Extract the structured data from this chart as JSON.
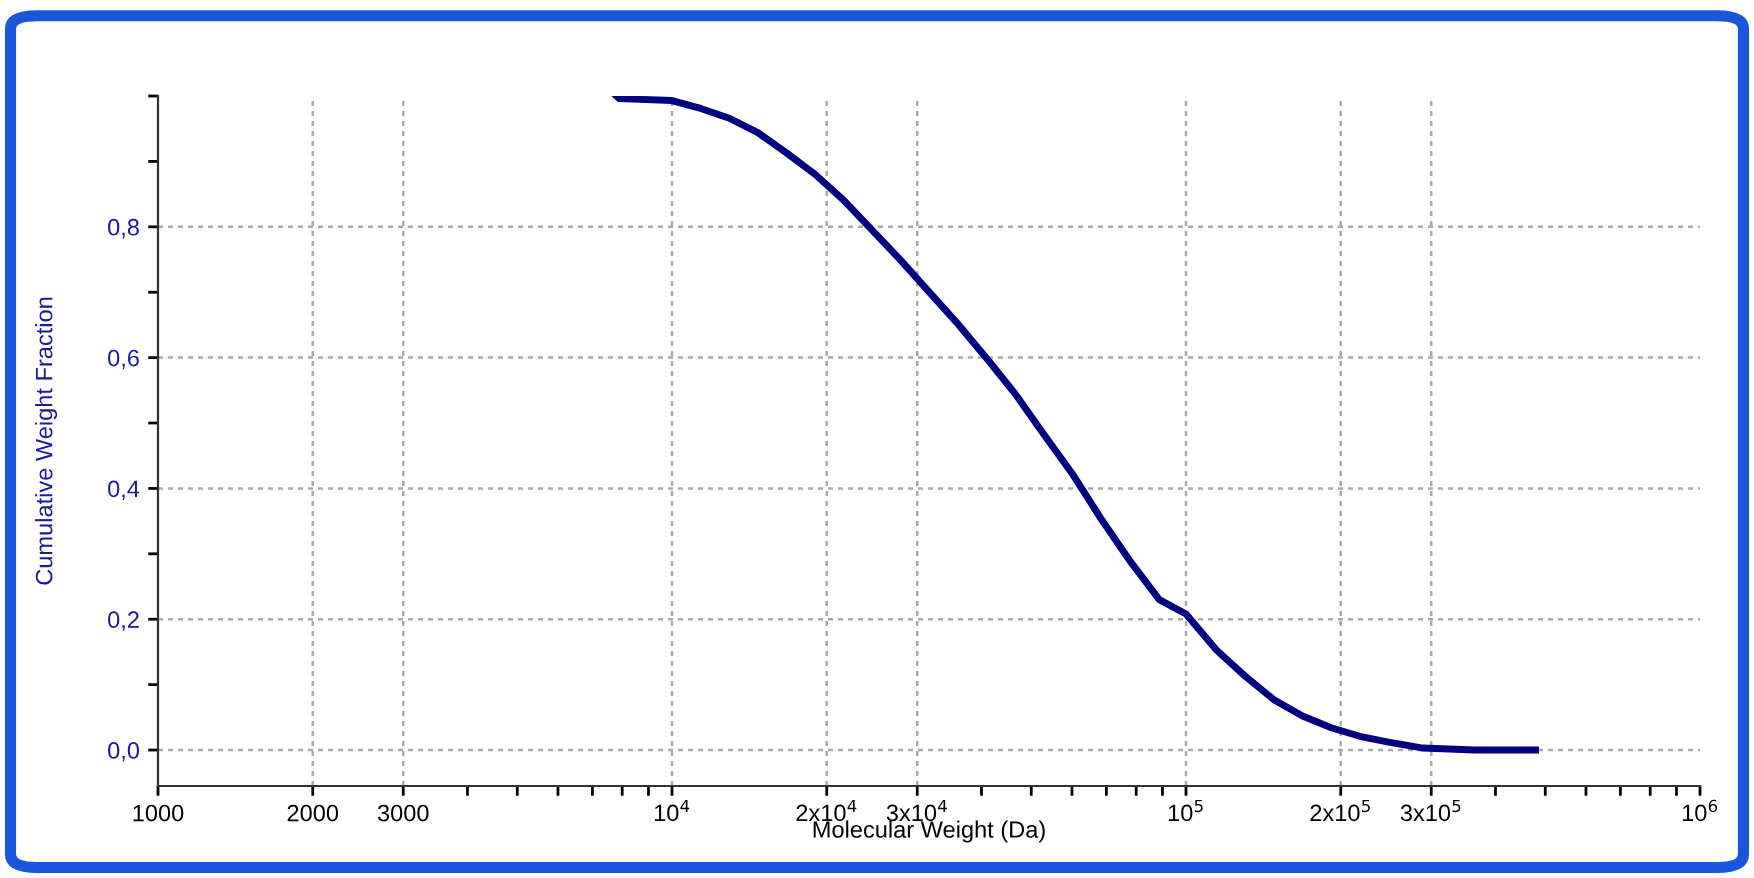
{
  "chart_data": {
    "type": "line",
    "xlabel": "Molecular Weight (Da)",
    "ylabel": "Cumulative Weight Fraction",
    "log": "x",
    "grid": true,
    "marker": "none",
    "line_style": "solid",
    "x": [
      7800,
      7900,
      10000,
      11370,
      12930,
      14690,
      16700,
      19000,
      21620,
      24560,
      27930,
      31760,
      36130,
      41040,
      46690,
      53090,
      60380,
      68550,
      77990,
      88700,
      100000,
      114600,
      130300,
      148200,
      168500,
      191700,
      217800,
      247800,
      289000,
      364000,
      478600
    ],
    "series": [
      {
        "color": "#000080",
        "values": [
          1.0,
          0.996,
          0.993,
          0.981,
          0.966,
          0.944,
          0.913,
          0.88,
          0.84,
          0.794,
          0.748,
          0.699,
          0.65,
          0.598,
          0.543,
          0.481,
          0.42,
          0.352,
          0.288,
          0.23,
          0.208,
          0.153,
          0.113,
          0.077,
          0.052,
          0.034,
          0.021,
          0.012,
          0.003,
          0.0,
          0.0
        ]
      }
    ],
    "xlim": [
      1000,
      1000000
    ],
    "ylim": [
      -0.055,
      1.0
    ],
    "xticks": [
      1000,
      2000,
      3000,
      {
        "value": 4000,
        "label": null
      },
      {
        "value": 5000,
        "label": null
      },
      {
        "value": 6000,
        "label": null
      },
      {
        "value": 7000,
        "label": null
      },
      {
        "value": 8000,
        "label": null
      },
      {
        "value": 9000,
        "label": null
      },
      {
        "value": 10000,
        "label": "10$^{4}$"
      },
      {
        "value": 20000,
        "label": "2x10$^{4}$"
      },
      {
        "value": 30000,
        "label": "3x10$^{4}$"
      },
      {
        "value": 40000,
        "label": null
      },
      {
        "value": 50000,
        "label": null
      },
      {
        "value": 60000,
        "label": null
      },
      {
        "value": 70000,
        "label": null
      },
      {
        "value": 80000,
        "label": null
      },
      {
        "value": 90000,
        "label": null
      },
      {
        "value": 100000,
        "label": "10$^{5}$"
      },
      {
        "value": 200000,
        "label": "2x10$^{5}$"
      },
      {
        "value": 300000,
        "label": "3x10$^{5}$"
      },
      {
        "value": 400000,
        "label": null
      },
      {
        "value": 500000,
        "label": null
      },
      {
        "value": 600000,
        "label": null
      },
      {
        "value": 700000,
        "label": null
      },
      {
        "value": 800000,
        "label": null
      },
      {
        "value": 900000,
        "label": null
      },
      {
        "value": 1000000,
        "label": "10$^{6}$"
      }
    ],
    "yticks": [
      {
        "value": 0.0,
        "label": "0,0"
      },
      {
        "value": 0.1,
        "label": null
      },
      {
        "value": 0.2,
        "label": "0,2"
      },
      {
        "value": 0.3,
        "label": null
      },
      {
        "value": 0.4,
        "label": "0,4"
      },
      {
        "value": 0.5,
        "label": null
      },
      {
        "value": 0.6,
        "label": "0,6"
      },
      {
        "value": 0.7,
        "label": null
      },
      {
        "value": 0.8,
        "label": "0,8"
      },
      {
        "value": 0.9,
        "label": null
      },
      {
        "value": 1.0,
        "label": null
      }
    ]
  }
}
